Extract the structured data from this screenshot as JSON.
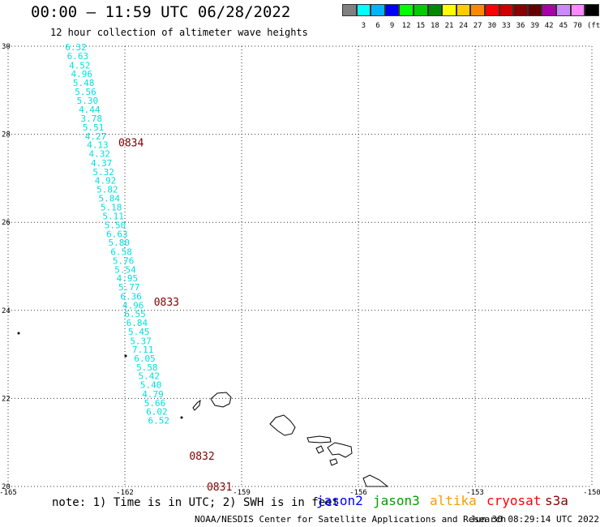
{
  "header": {
    "title": "00:00 – 11:59 UTC 06/28/2022",
    "subtitle": "12 hour collection of altimeter wave heights"
  },
  "legend": {
    "unit": "(ft)",
    "items": [
      {
        "label": "",
        "color": "#808080"
      },
      {
        "label": "3",
        "color": "#00ffff"
      },
      {
        "label": "6",
        "color": "#00b4ff"
      },
      {
        "label": "9",
        "color": "#0000ff"
      },
      {
        "label": "12",
        "color": "#00ff00"
      },
      {
        "label": "15",
        "color": "#00cc00"
      },
      {
        "label": "18",
        "color": "#008800"
      },
      {
        "label": "21",
        "color": "#ffff00"
      },
      {
        "label": "24",
        "color": "#ffcc00"
      },
      {
        "label": "27",
        "color": "#ff8800"
      },
      {
        "label": "30",
        "color": "#ff0000"
      },
      {
        "label": "33",
        "color": "#cc0000"
      },
      {
        "label": "36",
        "color": "#880000"
      },
      {
        "label": "39",
        "color": "#660000"
      },
      {
        "label": "42",
        "color": "#aa00aa"
      },
      {
        "label": "45",
        "color": "#cc88ff"
      },
      {
        "label": "70",
        "color": "#ff88ff"
      },
      {
        "label": "",
        "color": "#000000"
      }
    ]
  },
  "chart_data": {
    "type": "scatter",
    "title": "00:00 – 11:59 UTC 06/28/2022",
    "subtitle": "12 hour collection of altimeter wave heights",
    "xlim": [
      -165,
      -150
    ],
    "ylim": [
      20,
      30
    ],
    "x_ticks": [
      -165,
      -162,
      -159,
      -156,
      -153,
      -150
    ],
    "x_tick_labels": [
      "-165",
      "-162",
      "-159",
      "-156",
      "-153",
      "-150"
    ],
    "y_ticks": [
      20,
      22,
      24,
      26,
      28,
      30
    ],
    "y_tick_labels": [
      "20",
      "22",
      "24",
      "26",
      "28",
      "30"
    ],
    "grid": true,
    "value_color": "#00e0e0",
    "time_color": "#800000",
    "points": [
      {
        "lon": -163.26,
        "lat": 29.98,
        "value": "6.32"
      },
      {
        "lon": -163.21,
        "lat": 29.78,
        "value": "6.63"
      },
      {
        "lon": -163.16,
        "lat": 29.57,
        "value": "4.52"
      },
      {
        "lon": -163.11,
        "lat": 29.37,
        "value": "4.96"
      },
      {
        "lon": -163.06,
        "lat": 29.17,
        "value": "5.48"
      },
      {
        "lon": -163.01,
        "lat": 28.97,
        "value": "5.56"
      },
      {
        "lon": -162.96,
        "lat": 28.77,
        "value": "5.30"
      },
      {
        "lon": -162.91,
        "lat": 28.56,
        "value": "4.44"
      },
      {
        "lon": -162.86,
        "lat": 28.36,
        "value": "3.78"
      },
      {
        "lon": -162.81,
        "lat": 28.16,
        "value": "5.51"
      },
      {
        "lon": -162.75,
        "lat": 27.96,
        "value": "4.27"
      },
      {
        "lon": -162.7,
        "lat": 27.76,
        "value": "4.13"
      },
      {
        "lon": -162.65,
        "lat": 27.56,
        "value": "4.32"
      },
      {
        "lon": -162.6,
        "lat": 27.35,
        "value": "4.37"
      },
      {
        "lon": -162.55,
        "lat": 27.15,
        "value": "5.32"
      },
      {
        "lon": -162.5,
        "lat": 26.95,
        "value": "4.92"
      },
      {
        "lon": -162.45,
        "lat": 26.75,
        "value": "5.82"
      },
      {
        "lon": -162.4,
        "lat": 26.55,
        "value": "5.84"
      },
      {
        "lon": -162.35,
        "lat": 26.34,
        "value": "5.18"
      },
      {
        "lon": -162.3,
        "lat": 26.14,
        "value": "5.11"
      },
      {
        "lon": -162.25,
        "lat": 25.94,
        "value": "5.50"
      },
      {
        "lon": -162.2,
        "lat": 25.74,
        "value": "6.63"
      },
      {
        "lon": -162.15,
        "lat": 25.54,
        "value": "5.80"
      },
      {
        "lon": -162.09,
        "lat": 25.33,
        "value": "6.58"
      },
      {
        "lon": -162.04,
        "lat": 25.13,
        "value": "5.76"
      },
      {
        "lon": -161.99,
        "lat": 24.93,
        "value": "5.54"
      },
      {
        "lon": -161.94,
        "lat": 24.73,
        "value": "4.95"
      },
      {
        "lon": -161.89,
        "lat": 24.53,
        "value": "5.77"
      },
      {
        "lon": -161.84,
        "lat": 24.32,
        "value": "6.36"
      },
      {
        "lon": -161.79,
        "lat": 24.12,
        "value": "4.96"
      },
      {
        "lon": -161.74,
        "lat": 23.92,
        "value": "6.55"
      },
      {
        "lon": -161.69,
        "lat": 23.72,
        "value": "6.84"
      },
      {
        "lon": -161.64,
        "lat": 23.52,
        "value": "5.45"
      },
      {
        "lon": -161.59,
        "lat": 23.31,
        "value": "5.37"
      },
      {
        "lon": -161.54,
        "lat": 23.11,
        "value": "7.11"
      },
      {
        "lon": -161.49,
        "lat": 22.91,
        "value": "6.05"
      },
      {
        "lon": -161.43,
        "lat": 22.71,
        "value": "5.58"
      },
      {
        "lon": -161.38,
        "lat": 22.51,
        "value": "5.42"
      },
      {
        "lon": -161.33,
        "lat": 22.31,
        "value": "5.40"
      },
      {
        "lon": -161.28,
        "lat": 22.1,
        "value": "4.79"
      },
      {
        "lon": -161.23,
        "lat": 21.9,
        "value": "5.66"
      },
      {
        "lon": -161.18,
        "lat": 21.7,
        "value": "6.02"
      },
      {
        "lon": -161.13,
        "lat": 21.5,
        "value": "6.52"
      }
    ],
    "time_annotations": [
      {
        "lon": -161.84,
        "lat": 27.82,
        "label": "0834"
      },
      {
        "lon": -160.93,
        "lat": 24.2,
        "label": "0833"
      },
      {
        "lon": -160.02,
        "lat": 20.7,
        "label": "0832"
      },
      {
        "lon": -159.57,
        "lat": 20.0,
        "label": "0831"
      }
    ]
  },
  "footer": {
    "note": "note: 1) Time is in UTC; 2) SWH is in feet",
    "satellites": [
      {
        "name": "jason2",
        "color": "#0000ff"
      },
      {
        "name": "jason3",
        "color": "#00a000"
      },
      {
        "name": "altika",
        "color": "#ff9900"
      },
      {
        "name": "cryosat",
        "color": "#ff0000"
      },
      {
        "name": "s3a",
        "color": "#880000"
      }
    ],
    "credit": "NOAA/NESDIS Center for Satellite Applications and Research",
    "timestamp": "Jun 30 08:29:14 UTC 2022"
  }
}
